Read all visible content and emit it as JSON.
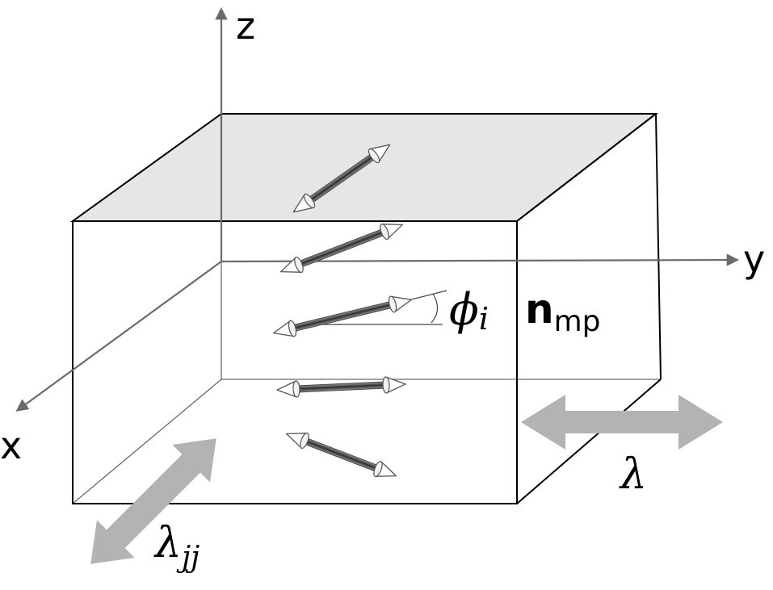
{
  "axes": {
    "x_label": "x",
    "y_label": "y",
    "z_label": "z"
  },
  "labels": {
    "phi_symbol": "ϕ",
    "phi_subscript": "i",
    "director_symbol": "n",
    "director_subscript": "mp",
    "lambda_symbol": "λ",
    "lambda_jj_symbol": "λ",
    "lambda_jj_subscript": "jj"
  },
  "colors": {
    "line": "#000000",
    "axis": "#6b6b6b",
    "top_face": "#e6e6e6",
    "wide_arrow": "#b3b3b3",
    "rod": "#5a5a5a"
  }
}
